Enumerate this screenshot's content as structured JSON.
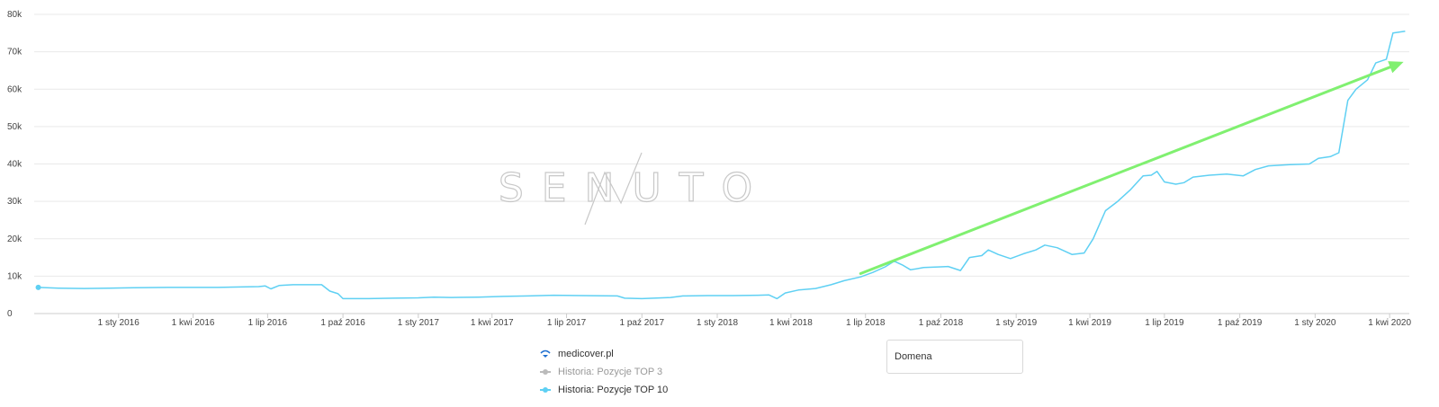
{
  "chart_data": {
    "type": "line",
    "title": "",
    "xlabel": "",
    "ylabel": "",
    "ylim": [
      0,
      80000
    ],
    "xlim": [
      "2015-09-20",
      "2020-04-25"
    ],
    "y_ticks": [
      0,
      10000,
      20000,
      30000,
      40000,
      50000,
      60000,
      70000,
      80000
    ],
    "y_tick_labels": [
      "0",
      "10k",
      "20k",
      "30k",
      "40k",
      "50k",
      "60k",
      "70k",
      "80k"
    ],
    "x_ticks": [
      {
        "date": "2016-01-01",
        "label": "1 sty 2016"
      },
      {
        "date": "2016-04-01",
        "label": "1 kwi 2016"
      },
      {
        "date": "2016-07-01",
        "label": "1 lip 2016"
      },
      {
        "date": "2016-10-01",
        "label": "1 paź 2016"
      },
      {
        "date": "2017-01-01",
        "label": "1 sty 2017"
      },
      {
        "date": "2017-04-01",
        "label": "1 kwi 2017"
      },
      {
        "date": "2017-07-01",
        "label": "1 lip 2017"
      },
      {
        "date": "2017-10-01",
        "label": "1 paź 2017"
      },
      {
        "date": "2018-01-01",
        "label": "1 sty 2018"
      },
      {
        "date": "2018-04-01",
        "label": "1 kwi 2018"
      },
      {
        "date": "2018-07-01",
        "label": "1 lip 2018"
      },
      {
        "date": "2018-10-01",
        "label": "1 paź 2018"
      },
      {
        "date": "2019-01-01",
        "label": "1 sty 2019"
      },
      {
        "date": "2019-04-01",
        "label": "1 kwi 2019"
      },
      {
        "date": "2019-07-01",
        "label": "1 lip 2019"
      },
      {
        "date": "2019-10-01",
        "label": "1 paź 2019"
      },
      {
        "date": "2020-01-01",
        "label": "1 sty 2020"
      },
      {
        "date": "2020-04-01",
        "label": "1 kwi 2020"
      }
    ],
    "grid": true,
    "series": [
      {
        "name": "Historia: Pozycje TOP 10",
        "color": "#5fd0f3",
        "points": [
          [
            "2015-09-25",
            7000
          ],
          [
            "2015-10-20",
            6800
          ],
          [
            "2015-11-20",
            6700
          ],
          [
            "2015-12-20",
            6800
          ],
          [
            "2016-01-20",
            6900
          ],
          [
            "2016-03-01",
            7000
          ],
          [
            "2016-05-01",
            7000
          ],
          [
            "2016-06-20",
            7200
          ],
          [
            "2016-06-28",
            7400
          ],
          [
            "2016-07-05",
            6600
          ],
          [
            "2016-07-15",
            7500
          ],
          [
            "2016-08-01",
            7700
          ],
          [
            "2016-09-05",
            7700
          ],
          [
            "2016-09-15",
            6000
          ],
          [
            "2016-09-25",
            5300
          ],
          [
            "2016-10-01",
            4000
          ],
          [
            "2016-11-01",
            4000
          ],
          [
            "2016-12-01",
            4100
          ],
          [
            "2017-01-01",
            4200
          ],
          [
            "2017-01-20",
            4400
          ],
          [
            "2017-02-10",
            4300
          ],
          [
            "2017-03-15",
            4400
          ],
          [
            "2017-04-15",
            4600
          ],
          [
            "2017-05-15",
            4700
          ],
          [
            "2017-06-15",
            4900
          ],
          [
            "2017-07-20",
            4800
          ],
          [
            "2017-09-01",
            4700
          ],
          [
            "2017-09-10",
            4100
          ],
          [
            "2017-10-01",
            4000
          ],
          [
            "2017-11-05",
            4300
          ],
          [
            "2017-11-20",
            4700
          ],
          [
            "2017-12-20",
            4800
          ],
          [
            "2018-01-20",
            4800
          ],
          [
            "2018-02-20",
            4900
          ],
          [
            "2018-03-05",
            5000
          ],
          [
            "2018-03-15",
            4000
          ],
          [
            "2018-03-25",
            5500
          ],
          [
            "2018-04-10",
            6300
          ],
          [
            "2018-05-01",
            6700
          ],
          [
            "2018-05-20",
            7700
          ],
          [
            "2018-06-05",
            8800
          ],
          [
            "2018-06-25",
            9800
          ],
          [
            "2018-07-10",
            11000
          ],
          [
            "2018-07-25",
            12500
          ],
          [
            "2018-08-05",
            14000
          ],
          [
            "2018-08-15",
            13000
          ],
          [
            "2018-08-25",
            11700
          ],
          [
            "2018-09-10",
            12300
          ],
          [
            "2018-10-01",
            12500
          ],
          [
            "2018-10-10",
            12600
          ],
          [
            "2018-10-25",
            11500
          ],
          [
            "2018-11-05",
            15000
          ],
          [
            "2018-11-20",
            15500
          ],
          [
            "2018-11-28",
            17000
          ],
          [
            "2018-12-10",
            15800
          ],
          [
            "2018-12-25",
            14700
          ],
          [
            "2019-01-10",
            16000
          ],
          [
            "2019-01-25",
            17000
          ],
          [
            "2019-02-05",
            18300
          ],
          [
            "2019-02-20",
            17600
          ],
          [
            "2019-03-10",
            15800
          ],
          [
            "2019-03-25",
            16200
          ],
          [
            "2019-04-05",
            20000
          ],
          [
            "2019-04-20",
            27500
          ],
          [
            "2019-05-05",
            30000
          ],
          [
            "2019-05-20",
            33000
          ],
          [
            "2019-06-05",
            36800
          ],
          [
            "2019-06-15",
            37000
          ],
          [
            "2019-06-22",
            38000
          ],
          [
            "2019-07-01",
            35200
          ],
          [
            "2019-07-15",
            34600
          ],
          [
            "2019-07-25",
            35000
          ],
          [
            "2019-08-05",
            36500
          ],
          [
            "2019-08-25",
            37000
          ],
          [
            "2019-09-15",
            37300
          ],
          [
            "2019-10-05",
            36800
          ],
          [
            "2019-10-20",
            38500
          ],
          [
            "2019-11-05",
            39500
          ],
          [
            "2019-12-01",
            39800
          ],
          [
            "2019-12-25",
            40000
          ],
          [
            "2020-01-05",
            41500
          ],
          [
            "2020-01-20",
            42000
          ],
          [
            "2020-01-30",
            43000
          ],
          [
            "2020-02-10",
            57000
          ],
          [
            "2020-02-20",
            60000
          ],
          [
            "2020-03-05",
            62500
          ],
          [
            "2020-03-15",
            67000
          ],
          [
            "2020-03-28",
            68000
          ],
          [
            "2020-04-05",
            75000
          ],
          [
            "2020-04-20",
            75500
          ]
        ]
      }
    ],
    "annotations": {
      "trend_arrow": {
        "color": "#80f070",
        "from": [
          "2018-06-25",
          10700
        ],
        "to": [
          "2020-04-18",
          67300
        ]
      }
    }
  },
  "watermark": "SENUTO",
  "legend": {
    "domain_label": "medicover.pl",
    "items": [
      {
        "label": "Historia: Pozycje TOP 3",
        "color": "#bbbbbb"
      },
      {
        "label": "Historia: Pozycje TOP 10",
        "color": "#5fd0f3"
      }
    ]
  },
  "domain_input": {
    "placeholder": "Domena"
  }
}
